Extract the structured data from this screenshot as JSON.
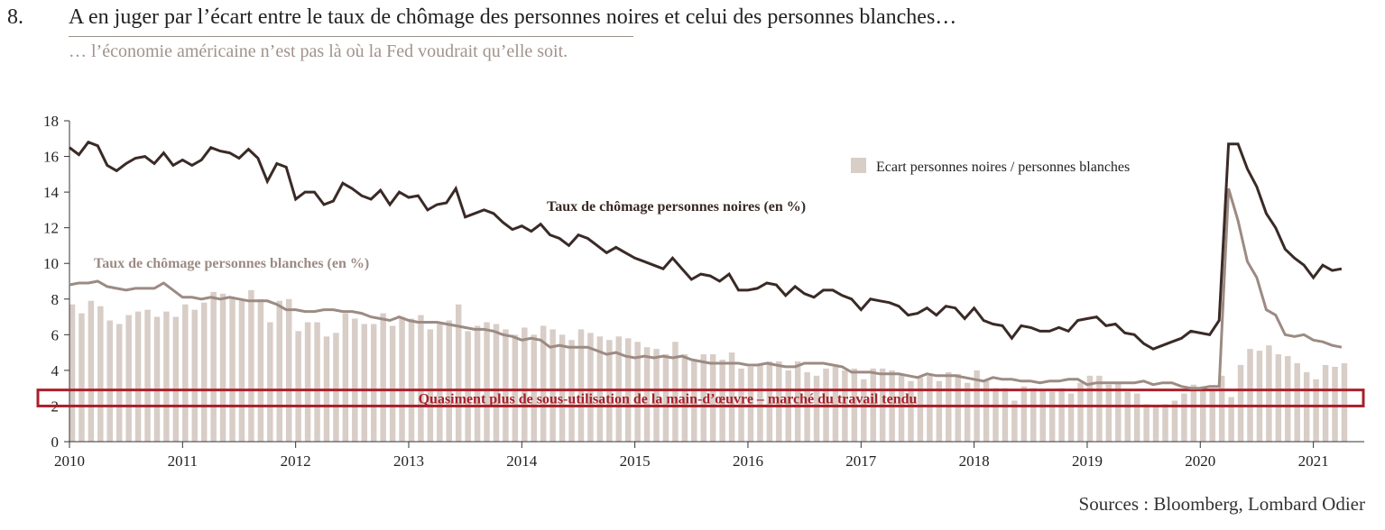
{
  "header": {
    "number": "8.",
    "title": "A en juger par l’écart entre le taux de chômage des personnes noires et celui des personnes blanches…",
    "subtitle": "… l’économie américaine n’est pas là où la Fed voudrait qu’elle soit.",
    "sources": "Sources : Bloomberg, Lombard Odier"
  },
  "colors": {
    "black_series": "#3a2a26",
    "white_series": "#9c8b83",
    "gap_bars": "#d8cdc7",
    "highlight_box": "#a8202a",
    "axis": "#333333"
  },
  "chart_data": {
    "type": "bar+line",
    "ylim": [
      0,
      18
    ],
    "yticks": [
      "0",
      "2",
      "4",
      "6",
      "8",
      "10",
      "12",
      "14",
      "16",
      "18"
    ],
    "xticks": [
      "2010",
      "2011",
      "2012",
      "2013",
      "2014",
      "2015",
      "2016",
      "2017",
      "2018",
      "2019",
      "2020",
      "2021"
    ],
    "x_start": 2010.0,
    "x_step": 0.0833333,
    "legend": {
      "label": "Ecart personnes noires / personnes blanches",
      "position": "top-right"
    },
    "annotations": {
      "black_label": "Taux de chômage personnes noires (en %)",
      "white_label": "Taux de chômage personnes blanches (en %)",
      "box_label": "Quasiment plus de sous-utilisation de la main-d’œuvre – marché du travail tendu",
      "box_range": [
        2,
        2.9
      ]
    },
    "series": [
      {
        "name": "Taux de chômage personnes noires (en %)",
        "kind": "line",
        "values": [
          16.5,
          16.1,
          16.8,
          16.6,
          15.5,
          15.2,
          15.6,
          15.9,
          16.0,
          15.6,
          16.2,
          15.5,
          15.8,
          15.5,
          15.8,
          16.5,
          16.3,
          16.2,
          15.9,
          16.4,
          15.9,
          14.6,
          15.6,
          15.4,
          13.6,
          14.0,
          14.0,
          13.3,
          13.5,
          14.5,
          14.2,
          13.8,
          13.6,
          14.1,
          13.3,
          14.0,
          13.7,
          13.8,
          13.0,
          13.3,
          13.4,
          14.2,
          12.6,
          12.8,
          13.0,
          12.8,
          12.3,
          11.9,
          12.1,
          11.8,
          12.2,
          11.6,
          11.4,
          11.0,
          11.6,
          11.4,
          11.0,
          10.6,
          10.9,
          10.6,
          10.3,
          10.1,
          9.9,
          9.7,
          10.3,
          9.7,
          9.1,
          9.4,
          9.3,
          9.0,
          9.4,
          8.5,
          8.5,
          8.6,
          8.9,
          8.8,
          8.2,
          8.7,
          8.3,
          8.1,
          8.5,
          8.5,
          8.2,
          8.0,
          7.4,
          8.0,
          7.9,
          7.8,
          7.6,
          7.1,
          7.2,
          7.5,
          7.1,
          7.6,
          7.5,
          6.9,
          7.5,
          6.8,
          6.6,
          6.5,
          5.8,
          6.5,
          6.4,
          6.2,
          6.2,
          6.4,
          6.2,
          6.8,
          6.9,
          7.0,
          6.5,
          6.6,
          6.1,
          6.0,
          5.5,
          5.2,
          5.4,
          5.6,
          5.8,
          6.2,
          6.1,
          6.0,
          6.8,
          16.7,
          16.7,
          15.3,
          14.3,
          12.8,
          12.0,
          10.8,
          10.3,
          9.9,
          9.2,
          9.9,
          9.6,
          9.7
        ]
      },
      {
        "name": "Taux de chômage personnes blanches (en %)",
        "kind": "line",
        "values": [
          8.8,
          8.9,
          8.9,
          9.0,
          8.7,
          8.6,
          8.5,
          8.6,
          8.6,
          8.6,
          8.9,
          8.5,
          8.1,
          8.1,
          8.0,
          8.1,
          8.0,
          8.1,
          8.0,
          7.9,
          7.9,
          7.9,
          7.7,
          7.4,
          7.4,
          7.3,
          7.3,
          7.4,
          7.4,
          7.3,
          7.3,
          7.2,
          7.0,
          6.9,
          6.8,
          7.0,
          6.8,
          6.7,
          6.7,
          6.7,
          6.6,
          6.5,
          6.4,
          6.3,
          6.3,
          6.2,
          6.0,
          5.9,
          5.7,
          5.8,
          5.7,
          5.3,
          5.4,
          5.3,
          5.3,
          5.3,
          5.1,
          4.9,
          5.0,
          4.8,
          4.7,
          4.8,
          4.7,
          4.8,
          4.7,
          4.8,
          4.6,
          4.5,
          4.4,
          4.4,
          4.4,
          4.4,
          4.3,
          4.3,
          4.4,
          4.3,
          4.2,
          4.2,
          4.4,
          4.4,
          4.4,
          4.3,
          4.2,
          3.9,
          3.9,
          3.9,
          3.8,
          3.8,
          3.8,
          3.7,
          3.6,
          3.8,
          3.7,
          3.7,
          3.7,
          3.6,
          3.5,
          3.4,
          3.6,
          3.5,
          3.5,
          3.4,
          3.4,
          3.3,
          3.4,
          3.4,
          3.5,
          3.5,
          3.2,
          3.3,
          3.3,
          3.3,
          3.3,
          3.3,
          3.4,
          3.2,
          3.3,
          3.3,
          3.1,
          3.0,
          3.0,
          3.1,
          3.1,
          14.2,
          12.4,
          10.1,
          9.2,
          7.4,
          7.1,
          6.0,
          5.9,
          6.0,
          5.7,
          5.6,
          5.4,
          5.3
        ]
      },
      {
        "name": "Ecart personnes noires / personnes blanches",
        "kind": "bar",
        "values": [
          7.7,
          7.2,
          7.9,
          7.6,
          6.8,
          6.6,
          7.1,
          7.3,
          7.4,
          7.0,
          7.3,
          7.0,
          7.7,
          7.4,
          7.8,
          8.4,
          8.3,
          8.1,
          7.9,
          8.5,
          8.0,
          6.7,
          7.9,
          8.0,
          6.2,
          6.7,
          6.7,
          5.9,
          6.1,
          7.2,
          6.9,
          6.6,
          6.6,
          7.2,
          6.5,
          7.0,
          6.9,
          7.1,
          6.3,
          6.6,
          6.8,
          7.7,
          6.2,
          6.5,
          6.7,
          6.6,
          6.3,
          6.0,
          6.4,
          6.0,
          6.5,
          6.3,
          6.0,
          5.7,
          6.3,
          6.1,
          5.9,
          5.7,
          5.9,
          5.8,
          5.6,
          5.3,
          5.2,
          4.9,
          5.6,
          4.9,
          4.5,
          4.9,
          4.9,
          4.6,
          5.0,
          4.1,
          4.2,
          4.3,
          4.5,
          4.5,
          4.0,
          4.5,
          3.9,
          3.7,
          4.1,
          4.2,
          4.0,
          4.1,
          3.5,
          4.1,
          4.1,
          4.0,
          3.8,
          3.4,
          3.6,
          3.7,
          3.4,
          3.9,
          3.8,
          3.3,
          4.0,
          3.4,
          3.0,
          3.0,
          2.3,
          3.1,
          3.0,
          2.9,
          2.8,
          3.0,
          2.7,
          3.3,
          3.7,
          3.7,
          3.2,
          3.3,
          2.8,
          2.7,
          2.1,
          2.0,
          2.1,
          2.3,
          2.7,
          3.2,
          3.1,
          2.9,
          3.7,
          2.5,
          4.3,
          5.2,
          5.1,
          5.4,
          4.9,
          4.8,
          4.4,
          3.9,
          3.5,
          4.3,
          4.2,
          4.4
        ]
      }
    ]
  }
}
